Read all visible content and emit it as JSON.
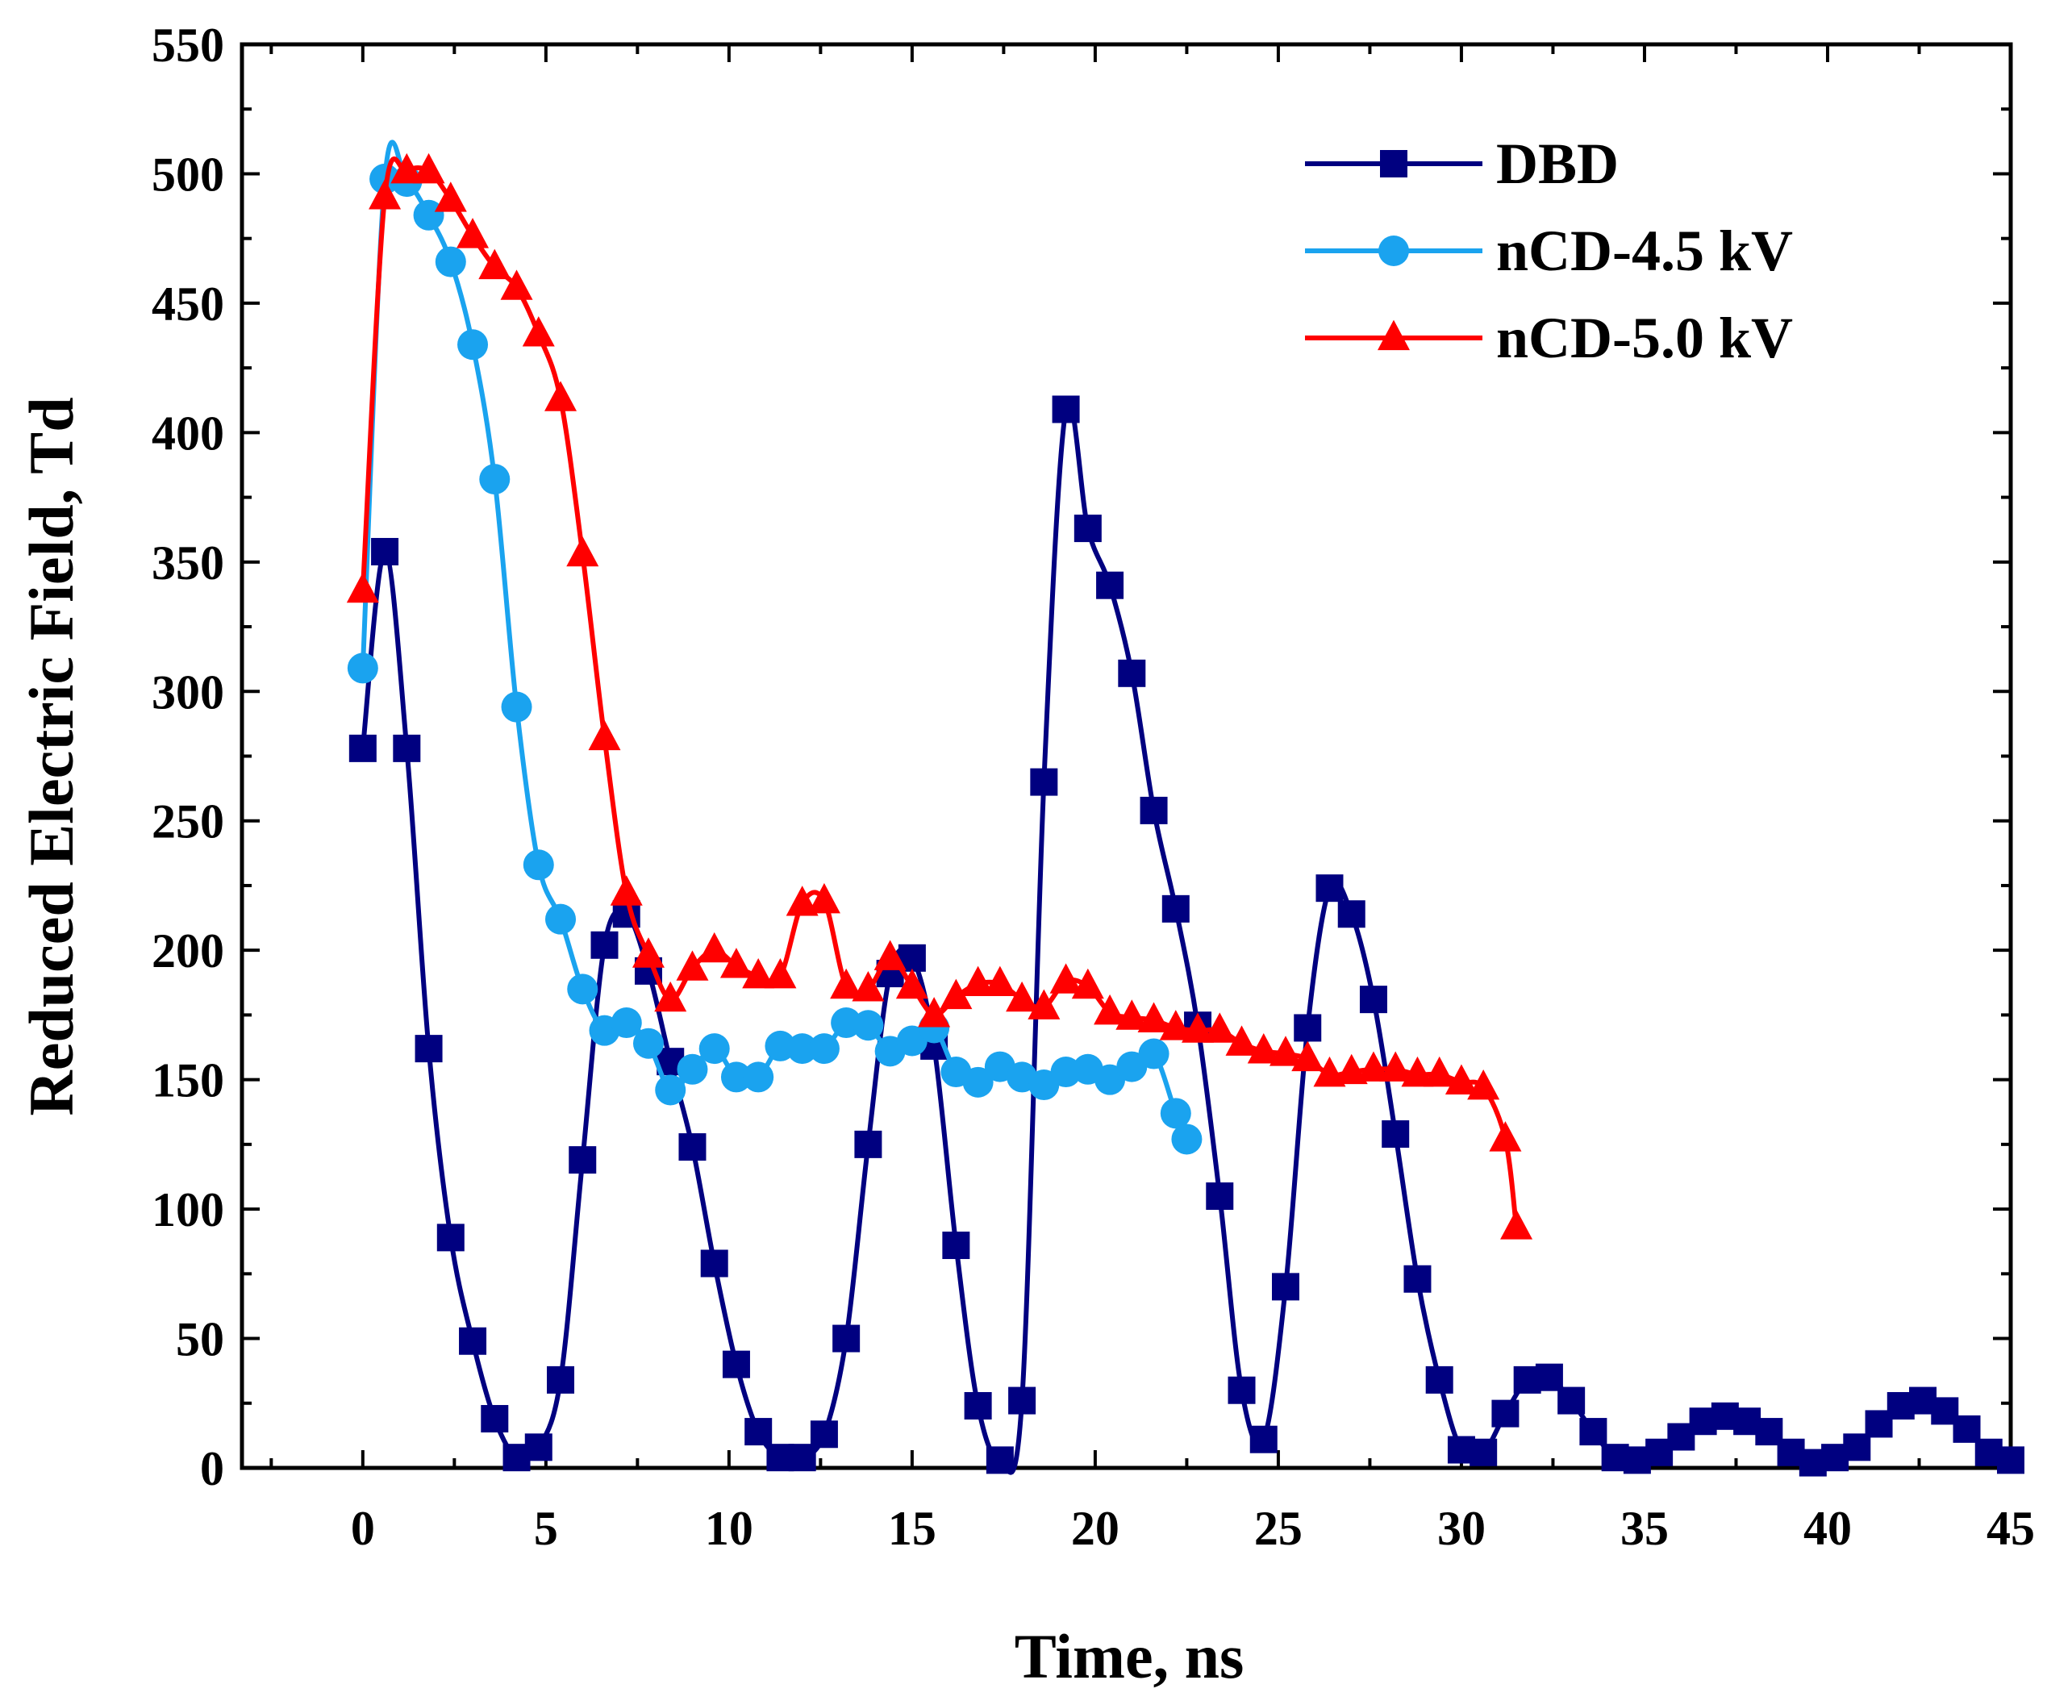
{
  "chart_data": {
    "type": "line",
    "title": "",
    "xlabel": "Time, ns",
    "ylabel": "Reduced Electric Field, Td",
    "xlim": [
      -3.3,
      45
    ],
    "ylim": [
      0,
      550
    ],
    "xticks": [
      0,
      5,
      10,
      15,
      20,
      25,
      30,
      35,
      40,
      45
    ],
    "yticks": [
      0,
      50,
      100,
      150,
      200,
      250,
      300,
      350,
      400,
      450,
      500,
      550
    ],
    "grid": false,
    "legend_position": "top-right",
    "series": [
      {
        "name": "DBD",
        "color": "#000080",
        "marker": "square",
        "x": [
          0,
          0.6,
          1.2,
          1.8,
          2.4,
          3.0,
          3.6,
          4.2,
          4.8,
          5.4,
          6.0,
          6.6,
          7.2,
          7.8,
          8.4,
          9.0,
          9.6,
          10.2,
          10.8,
          11.4,
          12.0,
          12.6,
          13.2,
          13.8,
          14.4,
          15.0,
          15.6,
          16.2,
          16.8,
          17.4,
          18.0,
          18.6,
          19.2,
          19.8,
          20.4,
          21.0,
          21.6,
          22.2,
          22.8,
          23.4,
          24.0,
          24.6,
          25.2,
          25.8,
          26.4,
          27.0,
          27.6,
          28.2,
          28.8,
          29.4,
          30.0,
          30.6,
          31.2,
          31.8,
          32.4,
          33.0,
          33.6,
          34.2,
          34.8,
          35.4,
          36.0,
          36.6,
          37.2,
          37.8,
          38.4,
          39.0,
          39.6,
          40.2,
          40.8,
          41.4,
          42.0,
          42.6,
          43.2,
          43.8,
          44.4,
          45.0
        ],
        "values": [
          278,
          354,
          278,
          162,
          89,
          49,
          19,
          4,
          8,
          34,
          119,
          202,
          214,
          192,
          157,
          124,
          79,
          40,
          14,
          4,
          4,
          13,
          50,
          125,
          191,
          197,
          163,
          86,
          24,
          3,
          26,
          265,
          409,
          363,
          341,
          307,
          254,
          216,
          171,
          105,
          30,
          11,
          70,
          170,
          224,
          214,
          181,
          129,
          73,
          34,
          7,
          6,
          21,
          34,
          35,
          26,
          14,
          4,
          3,
          6,
          12,
          18,
          20,
          18,
          14,
          6,
          2,
          4,
          8,
          17,
          24,
          26,
          22,
          15,
          6,
          3
        ]
      },
      {
        "name": "nCD-4.5 kV",
        "color": "#1aa3ef",
        "marker": "circle",
        "x": [
          0,
          0.6,
          1.2,
          1.8,
          2.4,
          3.0,
          3.6,
          4.2,
          4.8,
          5.4,
          6.0,
          6.6,
          7.2,
          7.8,
          8.4,
          9.0,
          9.6,
          10.2,
          10.8,
          11.4,
          12.0,
          12.6,
          13.2,
          13.8,
          14.4,
          15.0,
          15.6,
          16.2,
          16.8,
          17.4,
          18.0,
          18.6,
          19.2,
          19.8,
          20.4,
          21.0,
          21.6,
          22.2,
          22.5
        ],
        "values": [
          309,
          498,
          497,
          484,
          466,
          434,
          382,
          294,
          233,
          212,
          185,
          169,
          172,
          164,
          146,
          154,
          162,
          151,
          151,
          163,
          162,
          162,
          172,
          171,
          161,
          165,
          170,
          153,
          149,
          155,
          151,
          148,
          153,
          154,
          150,
          155,
          160,
          137,
          127
        ]
      },
      {
        "name": "nCD-5.0 kV",
        "color": "#ff0000",
        "marker": "triangle",
        "x": [
          0,
          0.6,
          1.2,
          1.8,
          2.4,
          3.0,
          3.6,
          4.2,
          4.8,
          5.4,
          6.0,
          6.6,
          7.2,
          7.8,
          8.4,
          9.0,
          9.6,
          10.2,
          10.8,
          11.4,
          12.0,
          12.6,
          13.2,
          13.8,
          14.4,
          15.0,
          15.6,
          16.2,
          16.8,
          17.4,
          18.0,
          18.6,
          19.2,
          19.8,
          20.4,
          21.0,
          21.6,
          22.2,
          22.8,
          23.4,
          24.0,
          24.6,
          25.2,
          25.8,
          26.4,
          27.0,
          27.6,
          28.2,
          28.8,
          29.4,
          30.0,
          30.6,
          31.2,
          31.5
        ],
        "values": [
          339,
          491,
          501,
          501,
          490,
          476,
          464,
          456,
          438,
          413,
          353,
          282,
          222,
          198,
          181,
          193,
          200,
          194,
          190,
          190,
          218,
          219,
          186,
          185,
          197,
          186,
          175,
          182,
          187,
          187,
          181,
          178,
          188,
          186,
          176,
          174,
          173,
          170,
          169,
          169,
          164,
          161,
          160,
          158,
          152,
          153,
          154,
          154,
          152,
          152,
          149,
          147,
          127,
          93
        ]
      }
    ]
  }
}
